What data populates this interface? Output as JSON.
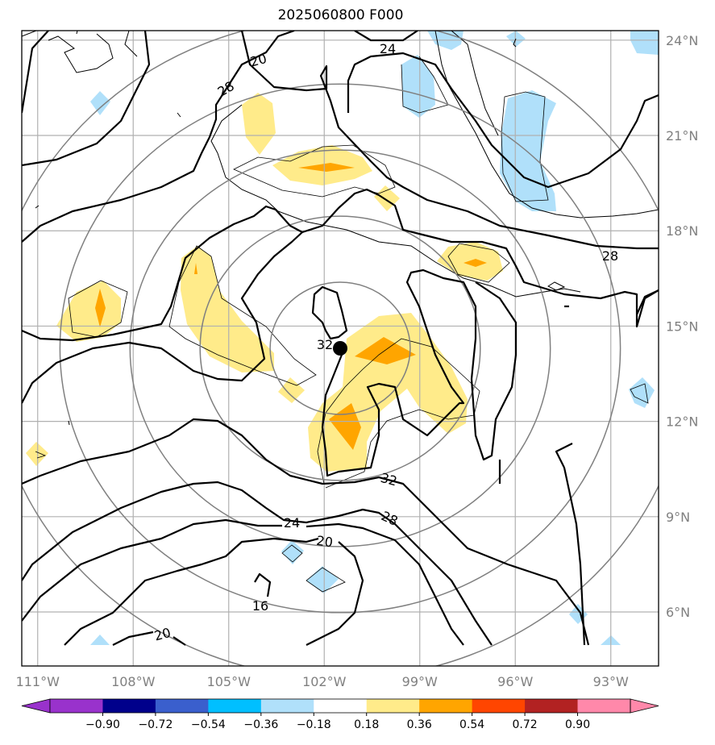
{
  "title": "2025060800 F000",
  "map": {
    "lon_range": [
      -111.5,
      -91.5
    ],
    "lat_range": [
      4.3,
      24.3
    ],
    "lon_ticks": [
      {
        "value": -111,
        "label": "111°W"
      },
      {
        "value": -108,
        "label": "108°W"
      },
      {
        "value": -105,
        "label": "105°W"
      },
      {
        "value": -102,
        "label": "102°W"
      },
      {
        "value": -99,
        "label": "99°W"
      },
      {
        "value": -96,
        "label": "96°W"
      },
      {
        "value": -93,
        "label": "93°W"
      }
    ],
    "lat_ticks": [
      {
        "value": 24,
        "label": "24°N"
      },
      {
        "value": 21,
        "label": "21°N"
      },
      {
        "value": 18,
        "label": "18°N"
      },
      {
        "value": 15,
        "label": "15°N"
      },
      {
        "value": 12,
        "label": "12°N"
      },
      {
        "value": 9,
        "label": "9°N"
      },
      {
        "value": 6,
        "label": "6°N"
      }
    ],
    "grid": true,
    "storm_center": {
      "lon": -101.5,
      "lat": 14.3
    },
    "range_ring_radii_deg": [
      2,
      4,
      6,
      8,
      10
    ]
  },
  "contour_labels": [
    "20",
    "24",
    "28",
    "28",
    "32",
    "32",
    "28",
    "24",
    "20",
    "16",
    "20"
  ],
  "colorbar": {
    "labels": [
      "−0.90",
      "−0.72",
      "−0.54",
      "−0.36",
      "−0.18",
      "0.18",
      "0.36",
      "0.54",
      "0.72",
      "0.90"
    ],
    "colors": [
      "#9932cc",
      "#00008b",
      "#3a5fcd",
      "#00bfff",
      "#b0e0fa",
      "#ffffff",
      "#ffeb8a",
      "#ffa500",
      "#ff4500",
      "#b22222",
      "#ff88aa",
      "#ff88aa"
    ],
    "extend": "both"
  },
  "colors": {
    "grid": "#b0b0b0",
    "rings": "#808080",
    "contours": "#000000",
    "positive_weak": "#ffeb8a",
    "positive_mid": "#ffa500",
    "negative_weak": "#b0e0fa"
  }
}
